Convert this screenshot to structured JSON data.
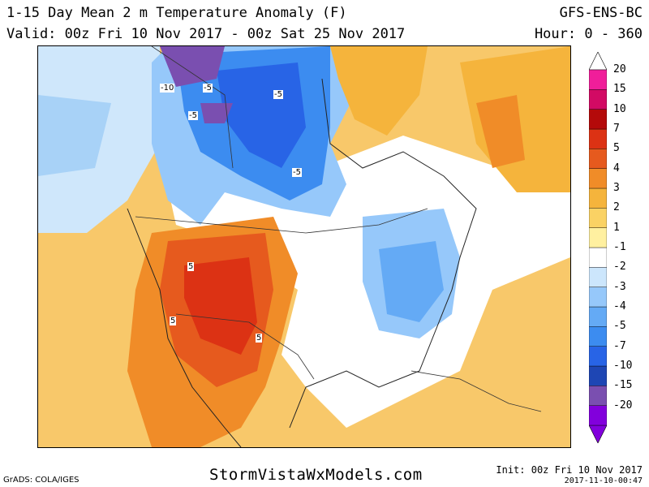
{
  "header": {
    "title": "1-15 Day Mean 2 m Temperature Anomaly (F)",
    "model": "GFS-ENS-BC",
    "valid": "Valid: 00z Fri 10 Nov 2017 - 00z Sat 25 Nov 2017",
    "hours": "Hour: 0 - 360"
  },
  "map": {
    "contour_labels": [
      "-10",
      "-5",
      "-5",
      "-5",
      "-5",
      "5",
      "5",
      "5"
    ]
  },
  "colorbar": {
    "ticks": [
      "20",
      "15",
      "10",
      "7",
      "5",
      "4",
      "3",
      "2",
      "1",
      "-1",
      "-2",
      "-3",
      "-4",
      "-5",
      "-7",
      "-10",
      "-15",
      "-20"
    ],
    "colors": [
      "#8200dc",
      "#7a4fb0",
      "#1e46b4",
      "#2864e6",
      "#3c8cf0",
      "#64aaf5",
      "#96c8fa",
      "#cce6fc",
      "#ffffff",
      "#fff0a0",
      "#fad264",
      "#f5b43c",
      "#f08c28",
      "#e65a1e",
      "#dc3214",
      "#b40a0a",
      "#d20a64",
      "#f01e9a"
    ]
  },
  "footer": {
    "credit": "GrADS: COLA/IGES",
    "site": "StormVistaWxModels.com",
    "init": "Init: 00z Fri 10 Nov 2017",
    "timestamp": "2017-11-10-00:47"
  }
}
